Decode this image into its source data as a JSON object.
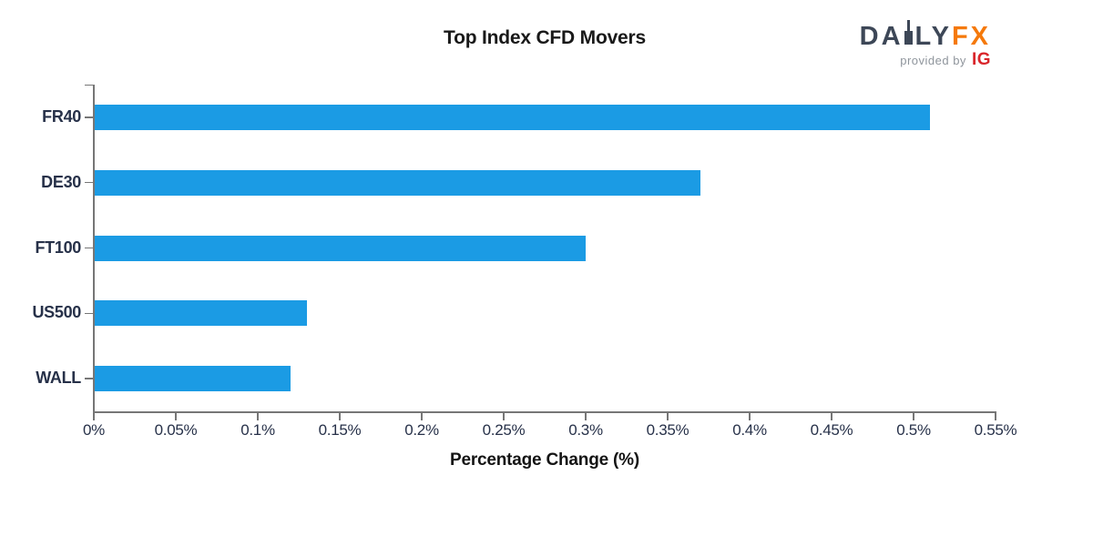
{
  "header": {
    "logo": {
      "brand_pre": "DA",
      "brand_post": "LY",
      "brand_fx": "FX",
      "provided_by": "provided by",
      "ig": "IG",
      "colors": {
        "slate": "#3d4757",
        "orange": "#f5790a",
        "provided_gray": "#8f959c",
        "ig_red": "#d9262b"
      }
    }
  },
  "chart_data": {
    "type": "bar",
    "orientation": "horizontal",
    "title": "Top Index CFD Movers",
    "categories": [
      "FR40",
      "DE30",
      "FT100",
      "US500",
      "WALL"
    ],
    "values": [
      0.51,
      0.37,
      0.3,
      0.13,
      0.12
    ],
    "unit": "%",
    "xlabel": "Percentage Change (%)",
    "ylabel": "",
    "xlim": [
      0,
      0.55
    ],
    "x_tick_values": [
      0,
      0.05,
      0.1,
      0.15,
      0.2,
      0.25,
      0.3,
      0.35,
      0.4,
      0.45,
      0.5,
      0.55
    ],
    "x_tick_labels": [
      "0%",
      "0.05%",
      "0.1%",
      "0.15%",
      "0.2%",
      "0.25%",
      "0.3%",
      "0.35%",
      "0.4%",
      "0.45%",
      "0.5%",
      "0.55%"
    ],
    "bar_color": "#1b9be4",
    "axis_color": "#767676",
    "label_color": "#273149",
    "grid": false,
    "legend": null
  }
}
